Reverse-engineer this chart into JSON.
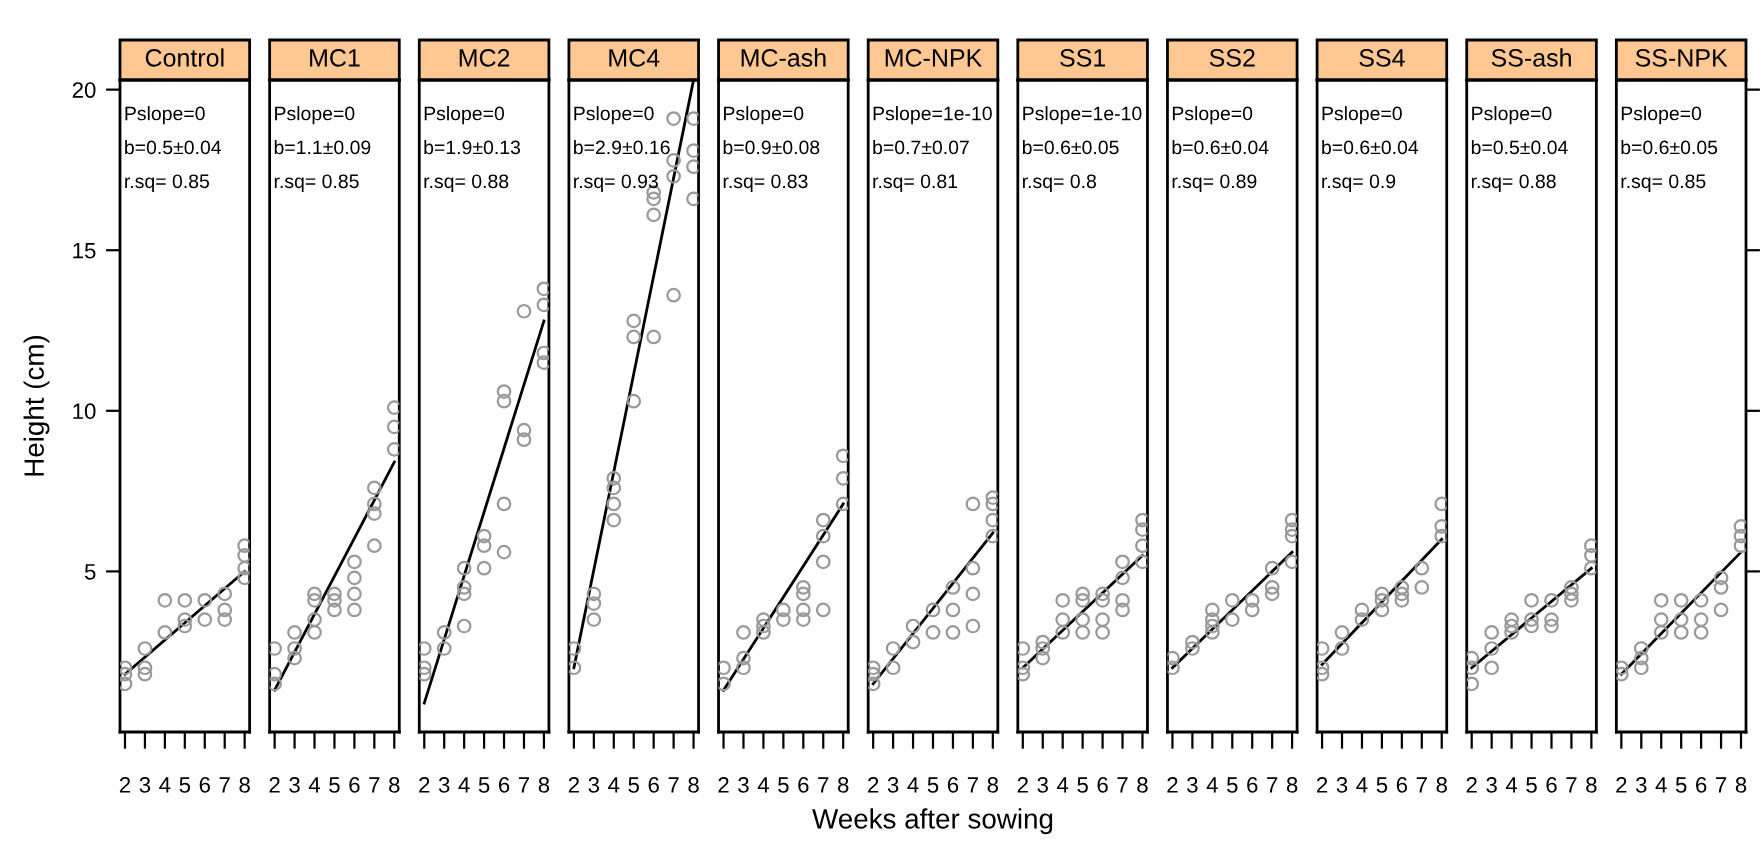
{
  "chart_data": [
    {
      "type": "scatter",
      "title": "Control",
      "ylabel": "Height (cm)",
      "xlim": [
        1.75,
        8.25
      ],
      "xticks": [
        2,
        3,
        4,
        5,
        6,
        7,
        8
      ],
      "ylim": [
        0,
        20.3
      ],
      "yticks": [
        5,
        10,
        15,
        20
      ],
      "annotations": [
        "Pslope=0",
        "b=0.5±0.04",
        "r.sq= 0.85"
      ],
      "series": [
        {
          "color": "#999999",
          "marker": "circle",
          "x": [
            2,
            2,
            2,
            3,
            3,
            3,
            4,
            4,
            5,
            5,
            5,
            6,
            6,
            7,
            7,
            7,
            8,
            8,
            8,
            8
          ],
          "values": [
            2.0,
            1.8,
            1.5,
            2.6,
            2.0,
            1.8,
            4.1,
            3.1,
            4.1,
            3.5,
            3.3,
            4.1,
            3.5,
            4.3,
            3.8,
            3.5,
            5.8,
            5.5,
            5.1,
            4.8
          ]
        },
        {
          "type": "line",
          "color": "#000000",
          "x": [
            2,
            8
          ],
          "values": [
            1.8,
            5.0
          ]
        }
      ]
    },
    {
      "type": "scatter",
      "title": "MC1",
      "tick_labels": "x",
      "xlim": [
        1.75,
        8.25
      ],
      "xticks": [
        2,
        3,
        4,
        5,
        6,
        7,
        8
      ],
      "ylim": [
        0,
        20.3
      ],
      "yticks": [
        5,
        10,
        15,
        20
      ],
      "annotations": [
        "Pslope=0",
        "b=1.1±0.09",
        "r.sq= 0.85"
      ],
      "series": [
        {
          "color": "#999999",
          "marker": "circle",
          "x": [
            2,
            2,
            2,
            3,
            3,
            3,
            4,
            4,
            4,
            4,
            5,
            5,
            5,
            6,
            6,
            6,
            6,
            7,
            7,
            7,
            7,
            8,
            8,
            8
          ],
          "values": [
            2.6,
            1.8,
            1.5,
            3.1,
            2.6,
            2.3,
            4.3,
            4.1,
            3.5,
            3.1,
            4.3,
            4.1,
            3.8,
            5.3,
            4.8,
            4.3,
            3.8,
            7.6,
            7.1,
            6.8,
            5.8,
            10.1,
            9.5,
            8.8
          ]
        },
        {
          "type": "line",
          "color": "#000000",
          "x": [
            2,
            8
          ],
          "values": [
            1.3,
            8.4
          ]
        }
      ]
    },
    {
      "type": "scatter",
      "title": "MC2",
      "tick_labels": "x",
      "xlim": [
        1.75,
        8.25
      ],
      "xticks": [
        2,
        3,
        4,
        5,
        6,
        7,
        8
      ],
      "ylim": [
        0,
        20.3
      ],
      "yticks": [
        5,
        10,
        15,
        20
      ],
      "annotations": [
        "Pslope=0",
        "b=1.9±0.13",
        "r.sq= 0.88"
      ],
      "series": [
        {
          "color": "#999999",
          "marker": "circle",
          "x": [
            2,
            2,
            2,
            3,
            3,
            4,
            4,
            4,
            4,
            5,
            5,
            5,
            6,
            6,
            6,
            6,
            7,
            7,
            7,
            8,
            8,
            8,
            8
          ],
          "values": [
            2.6,
            2.0,
            1.8,
            3.1,
            2.6,
            5.1,
            4.5,
            4.3,
            3.3,
            6.1,
            5.8,
            5.1,
            10.6,
            10.3,
            7.1,
            5.6,
            13.1,
            9.4,
            9.1,
            13.8,
            13.3,
            11.8,
            11.5
          ]
        },
        {
          "type": "line",
          "color": "#000000",
          "x": [
            2,
            8
          ],
          "values": [
            0.9,
            12.8
          ]
        }
      ]
    },
    {
      "type": "scatter",
      "title": "MC4",
      "tick_labels": "x",
      "xlim": [
        1.75,
        8.25
      ],
      "xticks": [
        2,
        3,
        4,
        5,
        6,
        7,
        8
      ],
      "ylim": [
        0,
        20.3
      ],
      "yticks": [
        5,
        10,
        15,
        20
      ],
      "annotations": [
        "Pslope=0",
        "b=2.9±0.16",
        "r.sq= 0.93"
      ],
      "series": [
        {
          "color": "#999999",
          "marker": "circle",
          "x": [
            2,
            2,
            3,
            3,
            3,
            4,
            4,
            4,
            4,
            5,
            5,
            5,
            6,
            6,
            6,
            6,
            7,
            7,
            7,
            7,
            8,
            8,
            8,
            8
          ],
          "values": [
            2.6,
            2.0,
            4.3,
            4.0,
            3.5,
            7.9,
            7.6,
            7.1,
            6.6,
            12.8,
            12.3,
            10.3,
            16.8,
            16.6,
            16.1,
            12.3,
            19.1,
            17.8,
            17.3,
            13.6,
            19.1,
            18.1,
            17.6,
            16.6
          ]
        },
        {
          "type": "line",
          "color": "#000000",
          "x": [
            2,
            8
          ],
          "values": [
            2.0,
            20.3
          ]
        }
      ]
    },
    {
      "type": "scatter",
      "title": "MC-ash",
      "tick_labels": "x",
      "xlim": [
        1.75,
        8.25
      ],
      "xticks": [
        2,
        3,
        4,
        5,
        6,
        7,
        8
      ],
      "ylim": [
        0,
        20.3
      ],
      "yticks": [
        5,
        10,
        15,
        20
      ],
      "annotations": [
        "Pslope=0",
        "b=0.9±0.08",
        "r.sq= 0.83"
      ],
      "series": [
        {
          "color": "#999999",
          "marker": "circle",
          "x": [
            2,
            2,
            3,
            3,
            3,
            4,
            4,
            4,
            5,
            5,
            6,
            6,
            6,
            6,
            7,
            7,
            7,
            7,
            8,
            8,
            8
          ],
          "values": [
            2.0,
            1.5,
            3.1,
            2.3,
            2.0,
            3.5,
            3.3,
            3.1,
            3.8,
            3.5,
            4.5,
            4.3,
            3.8,
            3.5,
            6.6,
            6.1,
            5.3,
            3.8,
            8.6,
            7.9,
            7.1
          ]
        },
        {
          "type": "line",
          "color": "#000000",
          "x": [
            2,
            8
          ],
          "values": [
            1.3,
            7.1
          ]
        }
      ]
    },
    {
      "type": "scatter",
      "title": "MC-NPK",
      "xlabel": "Weeks after sowing",
      "tick_labels": "x",
      "xlim": [
        1.75,
        8.25
      ],
      "xticks": [
        2,
        3,
        4,
        5,
        6,
        7,
        8
      ],
      "ylim": [
        0,
        20.3
      ],
      "yticks": [
        5,
        10,
        15,
        20
      ],
      "annotations": [
        "Pslope=1e-10",
        "b=0.7±0.07",
        "r.sq= 0.81"
      ],
      "series": [
        {
          "color": "#999999",
          "marker": "circle",
          "x": [
            2,
            2,
            2,
            3,
            3,
            4,
            4,
            5,
            5,
            6,
            6,
            6,
            7,
            7,
            7,
            7,
            8,
            8,
            8,
            8
          ],
          "values": [
            2.0,
            1.8,
            1.5,
            2.6,
            2.0,
            3.3,
            2.8,
            3.8,
            3.1,
            4.5,
            3.8,
            3.1,
            7.1,
            5.1,
            4.3,
            3.3,
            7.3,
            7.1,
            6.6,
            6.1
          ]
        },
        {
          "type": "line",
          "color": "#000000",
          "x": [
            2,
            8
          ],
          "values": [
            1.5,
            6.2
          ]
        }
      ]
    },
    {
      "type": "scatter",
      "title": "SS1",
      "tick_labels": "x",
      "xlim": [
        1.75,
        8.25
      ],
      "xticks": [
        2,
        3,
        4,
        5,
        6,
        7,
        8
      ],
      "ylim": [
        0,
        20.3
      ],
      "yticks": [
        5,
        10,
        15,
        20
      ],
      "annotations": [
        "Pslope=1e-10",
        "b=0.6±0.05",
        "r.sq= 0.8"
      ],
      "series": [
        {
          "color": "#999999",
          "marker": "circle",
          "x": [
            2,
            2,
            2,
            3,
            3,
            3,
            4,
            4,
            4,
            5,
            5,
            5,
            5,
            6,
            6,
            6,
            6,
            7,
            7,
            7,
            7,
            8,
            8,
            8,
            8
          ],
          "values": [
            2.6,
            2.0,
            1.8,
            2.8,
            2.6,
            2.3,
            4.1,
            3.5,
            3.1,
            4.3,
            4.1,
            3.5,
            3.1,
            4.3,
            4.1,
            3.5,
            3.1,
            5.3,
            4.8,
            4.1,
            3.8,
            6.6,
            6.3,
            5.8,
            5.3
          ]
        },
        {
          "type": "line",
          "color": "#000000",
          "x": [
            2,
            8
          ],
          "values": [
            2.0,
            5.5
          ]
        }
      ]
    },
    {
      "type": "scatter",
      "title": "SS2",
      "tick_labels": "x",
      "xlim": [
        1.75,
        8.25
      ],
      "xticks": [
        2,
        3,
        4,
        5,
        6,
        7,
        8
      ],
      "ylim": [
        0,
        20.3
      ],
      "yticks": [
        5,
        10,
        15,
        20
      ],
      "annotations": [
        "Pslope=0",
        "b=0.6±0.04",
        "r.sq= 0.89"
      ],
      "series": [
        {
          "color": "#999999",
          "marker": "circle",
          "x": [
            2,
            2,
            3,
            3,
            4,
            4,
            4,
            4,
            5,
            5,
            6,
            6,
            7,
            7,
            7,
            8,
            8,
            8,
            8
          ],
          "values": [
            2.3,
            2.0,
            2.8,
            2.6,
            3.8,
            3.5,
            3.3,
            3.1,
            4.1,
            3.5,
            4.1,
            3.8,
            5.1,
            4.5,
            4.3,
            6.6,
            6.3,
            6.1,
            5.3
          ]
        },
        {
          "type": "line",
          "color": "#000000",
          "x": [
            2,
            8
          ],
          "values": [
            2.0,
            5.6
          ]
        }
      ]
    },
    {
      "type": "scatter",
      "title": "SS4",
      "tick_labels": "x",
      "xlim": [
        1.75,
        8.25
      ],
      "xticks": [
        2,
        3,
        4,
        5,
        6,
        7,
        8
      ],
      "ylim": [
        0,
        20.3
      ],
      "yticks": [
        5,
        10,
        15,
        20
      ],
      "annotations": [
        "Pslope=0",
        "b=0.6±0.04",
        "r.sq= 0.9"
      ],
      "series": [
        {
          "color": "#999999",
          "marker": "circle",
          "x": [
            2,
            2,
            2,
            3,
            3,
            4,
            4,
            5,
            5,
            5,
            6,
            6,
            6,
            7,
            7,
            8,
            8,
            8
          ],
          "values": [
            2.6,
            2.0,
            1.8,
            3.1,
            2.6,
            3.8,
            3.5,
            4.3,
            4.1,
            3.8,
            4.5,
            4.3,
            4.1,
            5.1,
            4.5,
            7.1,
            6.4,
            6.1
          ]
        },
        {
          "type": "line",
          "color": "#000000",
          "x": [
            2,
            8
          ],
          "values": [
            2.1,
            6.0
          ]
        }
      ]
    },
    {
      "type": "scatter",
      "title": "SS-ash",
      "tick_labels": "x",
      "xlim": [
        1.75,
        8.25
      ],
      "xticks": [
        2,
        3,
        4,
        5,
        6,
        7,
        8
      ],
      "ylim": [
        0,
        20.3
      ],
      "yticks": [
        5,
        10,
        15,
        20
      ],
      "annotations": [
        "Pslope=0",
        "b=0.5±0.04",
        "r.sq= 0.88"
      ],
      "series": [
        {
          "color": "#999999",
          "marker": "circle",
          "x": [
            2,
            2,
            2,
            3,
            3,
            3,
            4,
            4,
            4,
            5,
            5,
            5,
            6,
            6,
            6,
            7,
            7,
            7,
            8,
            8,
            8
          ],
          "values": [
            2.3,
            2.0,
            1.5,
            3.1,
            2.6,
            2.0,
            3.5,
            3.3,
            3.1,
            4.1,
            3.5,
            3.3,
            4.1,
            3.5,
            3.3,
            4.5,
            4.3,
            4.1,
            5.8,
            5.5,
            5.1
          ]
        },
        {
          "type": "line",
          "color": "#000000",
          "x": [
            2,
            8
          ],
          "values": [
            2.0,
            5.1
          ]
        }
      ]
    },
    {
      "type": "scatter",
      "title": "SS-NPK",
      "tick_labels": "x",
      "xlim": [
        1.75,
        8.25
      ],
      "xticks": [
        2,
        3,
        4,
        5,
        6,
        7,
        8
      ],
      "ylim": [
        0,
        20.3
      ],
      "yticks": [
        5,
        10,
        15,
        20
      ],
      "annotations": [
        "Pslope=0",
        "b=0.6±0.05",
        "r.sq= 0.85"
      ],
      "series": [
        {
          "color": "#999999",
          "marker": "circle",
          "x": [
            2,
            2,
            3,
            3,
            3,
            4,
            4,
            4,
            5,
            5,
            5,
            6,
            6,
            6,
            7,
            7,
            7,
            8,
            8,
            8
          ],
          "values": [
            2.0,
            1.8,
            2.6,
            2.3,
            2.0,
            4.1,
            3.5,
            3.1,
            4.1,
            3.5,
            3.1,
            4.1,
            3.5,
            3.1,
            4.8,
            4.5,
            3.8,
            6.4,
            6.1,
            5.8
          ]
        },
        {
          "type": "line",
          "color": "#000000",
          "x": [
            2,
            8
          ],
          "values": [
            1.8,
            5.6
          ]
        }
      ]
    }
  ]
}
